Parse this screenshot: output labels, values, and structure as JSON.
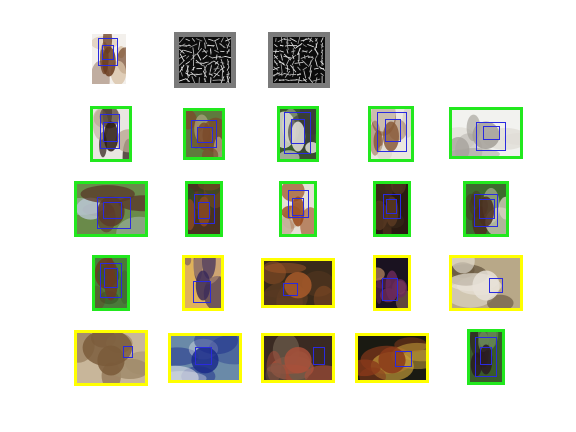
{
  "figure": {
    "rows": [
      {
        "tiles": [
          {
            "kind": "photo",
            "border": "none",
            "palette": [
              "#f3f0ec",
              "#6b3c1f",
              "#d9c3a8"
            ]
          },
          {
            "kind": "hog-template",
            "border": "grey"
          },
          {
            "kind": "hog-template",
            "border": "grey"
          }
        ]
      },
      {
        "tiles": [
          {
            "kind": "photo",
            "border": "green",
            "palette": [
              "#e9e6e1",
              "#2a1a12",
              "#b8a58f"
            ]
          },
          {
            "kind": "photo",
            "border": "green",
            "palette": [
              "#5f7a3d",
              "#7a4a2a",
              "#c9b49a"
            ]
          },
          {
            "kind": "photo",
            "border": "green",
            "palette": [
              "#3a5a2a",
              "#e6e3dd",
              "#3a3a3a"
            ]
          },
          {
            "kind": "photo",
            "border": "green",
            "palette": [
              "#ebe7e0",
              "#8a5a3a",
              "#d8d2c8"
            ]
          },
          {
            "kind": "photo",
            "border": "green",
            "palette": [
              "#f2f2ef",
              "#a39f98",
              "#e0ddd6"
            ]
          }
        ]
      },
      {
        "tiles": [
          {
            "kind": "photo",
            "border": "green",
            "palette": [
              "#6a8a4a",
              "#5a3a2a",
              "#b9c6d4"
            ]
          },
          {
            "kind": "photo",
            "border": "green",
            "palette": [
              "#4a3220",
              "#8a4a22",
              "#2e4a22"
            ]
          },
          {
            "kind": "photo",
            "border": "green",
            "palette": [
              "#e6e0d6",
              "#9a4a1a",
              "#c8b8a4"
            ]
          },
          {
            "kind": "photo",
            "border": "green",
            "palette": [
              "#2a1a12",
              "#5a3a22",
              "#3a2a1a"
            ]
          },
          {
            "kind": "photo",
            "border": "green",
            "palette": [
              "#3e6a2e",
              "#4a2e1e",
              "#d9d2c2"
            ]
          }
        ]
      },
      {
        "tiles": [
          {
            "kind": "photo",
            "border": "green",
            "palette": [
              "#4a7a3a",
              "#6a3a22",
              "#3a5a2a"
            ]
          },
          {
            "kind": "photo",
            "border": "yellow",
            "palette": [
              "#e0b25a",
              "#3a2a5a",
              "#c8a07a"
            ]
          },
          {
            "kind": "photo",
            "border": "yellow",
            "palette": [
              "#3a2a1a",
              "#a85a2a",
              "#5a3a22"
            ]
          },
          {
            "kind": "photo",
            "border": "yellow",
            "palette": [
              "#1a1220",
              "#6a2a5a",
              "#d8a070"
            ]
          },
          {
            "kind": "photo",
            "border": "yellow",
            "palette": [
              "#b8a888",
              "#e8e2d8",
              "#6a5a42"
            ]
          }
        ]
      },
      {
        "tiles": [
          {
            "kind": "photo",
            "border": "yellow",
            "palette": [
              "#c8b69a",
              "#7a5a3a",
              "#a08a6a"
            ]
          },
          {
            "kind": "photo",
            "border": "yellow",
            "palette": [
              "#6a8aa8",
              "#1a2a8a",
              "#e8e8ec"
            ]
          },
          {
            "kind": "photo",
            "border": "yellow",
            "palette": [
              "#3a2a22",
              "#a8503a",
              "#6a5a4a"
            ]
          },
          {
            "kind": "photo",
            "border": "yellow",
            "palette": [
              "#1a1a12",
              "#8a3a1a",
              "#c8a03a"
            ]
          },
          {
            "kind": "photo",
            "border": "green",
            "palette": [
              "#3a5a2a",
              "#2a1a22",
              "#6a8a5a"
            ]
          }
        ]
      }
    ]
  }
}
